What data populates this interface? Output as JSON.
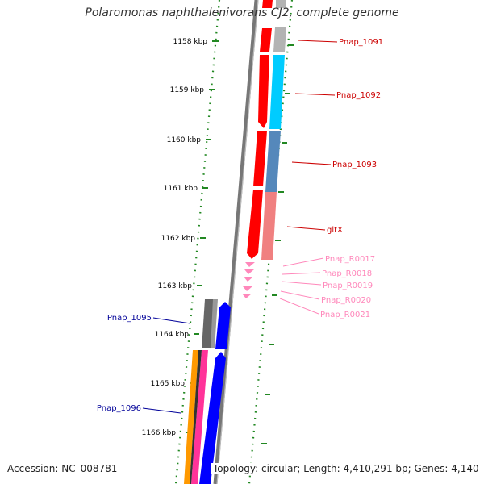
{
  "title": "Polaromonas naphthalenivorans CJ2, complete genome",
  "accession": "Accession: NC_008781",
  "topology": "Topology: circular; Length: 4,410,291 bp; Genes: 4,140",
  "scale_labels": [
    "1158 kbp",
    "1159 kbp",
    "1160 kbp",
    "1161 kbp",
    "1162 kbp",
    "1163 kbp",
    "1164 kbp",
    "1165 kbp",
    "1166 kbp"
  ],
  "colors": {
    "red": "#ff0000",
    "gray_arrow": "#666666",
    "blue": "#0000ff",
    "orange": "#ff9900",
    "magenta": "#ff3399",
    "light_gray": "#b3b3b3",
    "sky_blue": "#00ccff",
    "steel_blue": "#5588bb",
    "salmon": "#f08080",
    "pink_label": "#ff88bb",
    "scale_green": "#228822",
    "backbone": "#777777",
    "label_red": "#cc0000",
    "label_blue": "#000099"
  },
  "gene_labels": {
    "pnap_1091": "Pnap_1091",
    "pnap_1092": "Pnap_1092",
    "pnap_1093": "Pnap_1093",
    "gltx": "gltX",
    "pnap_r0017": "Pnap_R0017",
    "pnap_r0018": "Pnap_R0018",
    "pnap_r0019": "Pnap_R0019",
    "pnap_r0020": "Pnap_R0020",
    "pnap_r0021": "Pnap_R0021",
    "pnap_1095": "Pnap_1095",
    "pnap_1096": "Pnap_1096"
  }
}
